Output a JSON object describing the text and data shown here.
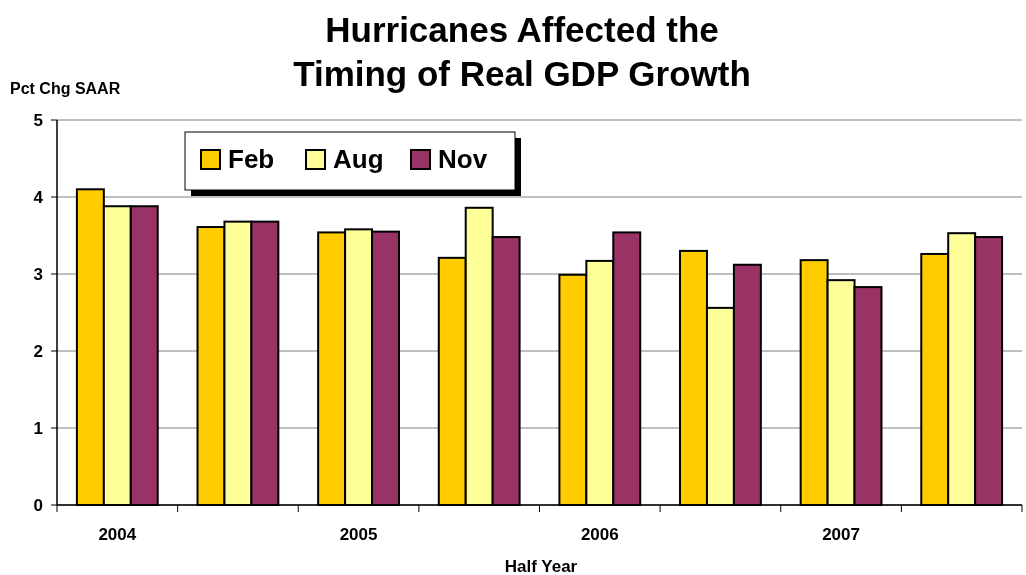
{
  "chart_data": {
    "type": "bar",
    "title": "Hurricanes Affected the Timing of Real GDP Growth",
    "ylabel": "Pct Chg SAAR",
    "xlabel": "Half Year",
    "categories": [
      "2004",
      null,
      "2005",
      null,
      "2006",
      null,
      "2007",
      null
    ],
    "series": [
      {
        "name": "Feb",
        "color": "#ffcc00",
        "values": [
          4.1,
          3.61,
          3.54,
          3.21,
          2.99,
          3.3,
          3.18,
          3.26
        ]
      },
      {
        "name": "Aug",
        "color": "#ffff99",
        "values": [
          3.88,
          3.68,
          3.58,
          3.86,
          3.17,
          2.56,
          2.92,
          3.53
        ]
      },
      {
        "name": "Nov",
        "color": "#993366",
        "values": [
          3.88,
          3.68,
          3.55,
          3.48,
          3.54,
          3.12,
          2.83,
          3.48
        ]
      }
    ],
    "ylim": [
      0,
      5
    ],
    "yticks": [
      0,
      1,
      2,
      3,
      4,
      5
    ],
    "grid": "y",
    "legend": "top left"
  }
}
